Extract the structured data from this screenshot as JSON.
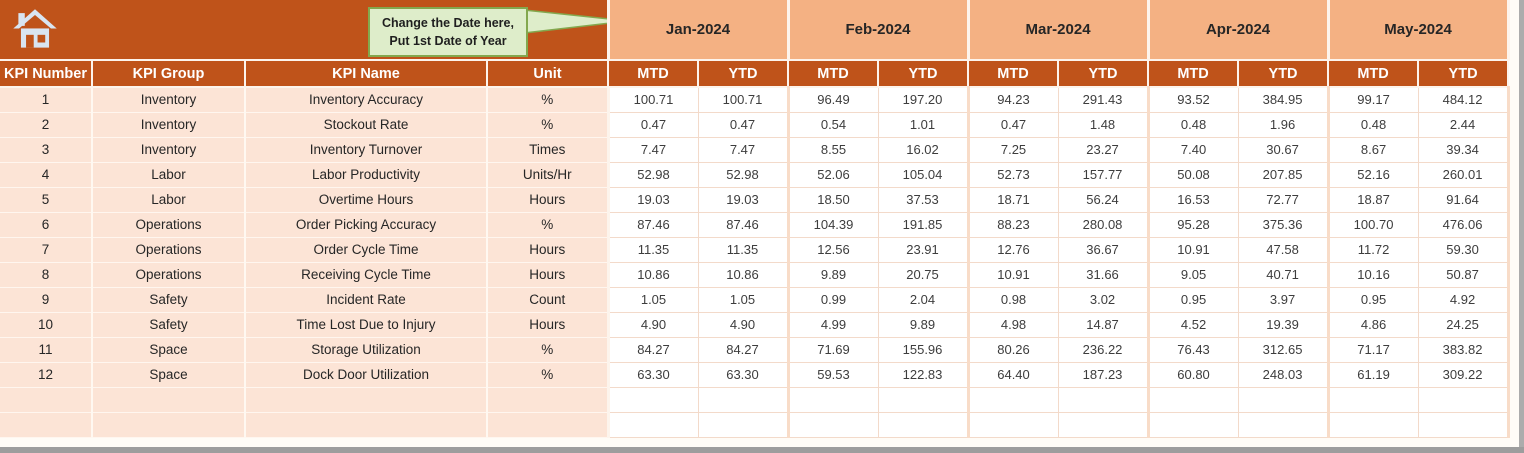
{
  "icons": {
    "home": "home-icon"
  },
  "callout": {
    "line1": "Change the Date here,",
    "line2": "Put 1st Date of Year"
  },
  "table": {
    "column_headers": [
      "KPI Number",
      "KPI Group",
      "KPI Name",
      "Unit"
    ],
    "months": [
      "Jan-2024",
      "Feb-2024",
      "Mar-2024",
      "Apr-2024",
      "May-2024"
    ],
    "sub_headers": [
      "MTD",
      "YTD"
    ],
    "rows": [
      {
        "kpi_number": "1",
        "kpi_group": "Inventory",
        "kpi_name": "Inventory Accuracy",
        "unit": "%",
        "values": [
          "100.71",
          "100.71",
          "96.49",
          "197.20",
          "94.23",
          "291.43",
          "93.52",
          "384.95",
          "99.17",
          "484.12"
        ]
      },
      {
        "kpi_number": "2",
        "kpi_group": "Inventory",
        "kpi_name": "Stockout Rate",
        "unit": "%",
        "values": [
          "0.47",
          "0.47",
          "0.54",
          "1.01",
          "0.47",
          "1.48",
          "0.48",
          "1.96",
          "0.48",
          "2.44"
        ]
      },
      {
        "kpi_number": "3",
        "kpi_group": "Inventory",
        "kpi_name": "Inventory Turnover",
        "unit": "Times",
        "values": [
          "7.47",
          "7.47",
          "8.55",
          "16.02",
          "7.25",
          "23.27",
          "7.40",
          "30.67",
          "8.67",
          "39.34"
        ]
      },
      {
        "kpi_number": "4",
        "kpi_group": "Labor",
        "kpi_name": "Labor Productivity",
        "unit": "Units/Hr",
        "values": [
          "52.98",
          "52.98",
          "52.06",
          "105.04",
          "52.73",
          "157.77",
          "50.08",
          "207.85",
          "52.16",
          "260.01"
        ]
      },
      {
        "kpi_number": "5",
        "kpi_group": "Labor",
        "kpi_name": "Overtime Hours",
        "unit": "Hours",
        "values": [
          "19.03",
          "19.03",
          "18.50",
          "37.53",
          "18.71",
          "56.24",
          "16.53",
          "72.77",
          "18.87",
          "91.64"
        ]
      },
      {
        "kpi_number": "6",
        "kpi_group": "Operations",
        "kpi_name": "Order Picking Accuracy",
        "unit": "%",
        "values": [
          "87.46",
          "87.46",
          "104.39",
          "191.85",
          "88.23",
          "280.08",
          "95.28",
          "375.36",
          "100.70",
          "476.06"
        ]
      },
      {
        "kpi_number": "7",
        "kpi_group": "Operations",
        "kpi_name": "Order Cycle Time",
        "unit": "Hours",
        "values": [
          "11.35",
          "11.35",
          "12.56",
          "23.91",
          "12.76",
          "36.67",
          "10.91",
          "47.58",
          "11.72",
          "59.30"
        ]
      },
      {
        "kpi_number": "8",
        "kpi_group": "Operations",
        "kpi_name": "Receiving Cycle Time",
        "unit": "Hours",
        "values": [
          "10.86",
          "10.86",
          "9.89",
          "20.75",
          "10.91",
          "31.66",
          "9.05",
          "40.71",
          "10.16",
          "50.87"
        ]
      },
      {
        "kpi_number": "9",
        "kpi_group": "Safety",
        "kpi_name": "Incident Rate",
        "unit": "Count",
        "values": [
          "1.05",
          "1.05",
          "0.99",
          "2.04",
          "0.98",
          "3.02",
          "0.95",
          "3.97",
          "0.95",
          "4.92"
        ]
      },
      {
        "kpi_number": "10",
        "kpi_group": "Safety",
        "kpi_name": "Time Lost Due to Injury",
        "unit": "Hours",
        "values": [
          "4.90",
          "4.90",
          "4.99",
          "9.89",
          "4.98",
          "14.87",
          "4.52",
          "19.39",
          "4.86",
          "24.25"
        ]
      },
      {
        "kpi_number": "11",
        "kpi_group": "Space",
        "kpi_name": "Storage Utilization",
        "unit": "%",
        "values": [
          "84.27",
          "84.27",
          "71.69",
          "155.96",
          "80.26",
          "236.22",
          "76.43",
          "312.65",
          "71.17",
          "383.82"
        ]
      },
      {
        "kpi_number": "12",
        "kpi_group": "Space",
        "kpi_name": "Dock Door Utilization",
        "unit": "%",
        "values": [
          "63.30",
          "63.30",
          "59.53",
          "122.83",
          "64.40",
          "187.23",
          "60.80",
          "248.03",
          "61.19",
          "309.22"
        ]
      }
    ],
    "empty_row_count": 2
  },
  "colors": {
    "header_orange": "#BF531A",
    "month_salmon": "#F4B183",
    "row_peach": "#FCE4D6",
    "callout_fill": "#DEEDCA",
    "callout_border": "#83A84E",
    "icon_blue": "#D9E5F1",
    "scrollbar_gray": "#9D9D9D"
  }
}
